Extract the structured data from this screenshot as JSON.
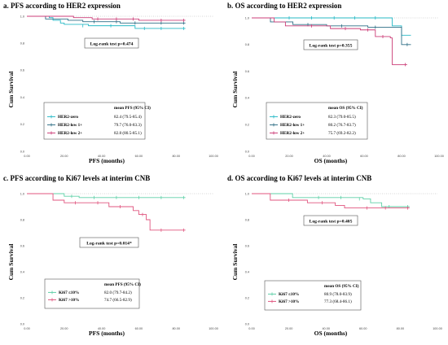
{
  "colors": {
    "HER2-zero": "#27b9c6",
    "HER2-low 1+": "#2f6f86",
    "HER2-low 2+": "#cc3e78",
    "Ki67 ≤10%": "#5fd0a7",
    "Ki67 >10%": "#e0567f"
  },
  "chart_data": [
    {
      "type": "line",
      "title": "a. PFS according to HER2 expression",
      "xlabel": "PFS (months)",
      "ylabel": "Cum Survival",
      "xlim": [
        0,
        100
      ],
      "ylim": [
        0,
        1
      ],
      "xticks": [
        "0.00",
        "20.00",
        "40.00",
        "60.00",
        "80.00",
        "100.00"
      ],
      "yticks": [
        "0.0",
        "0.2",
        "0.4",
        "0.6",
        "0.8",
        "1.0"
      ],
      "annotation": "Log-rank test p=0.474",
      "legend_header": "mean PFS (95% CI)",
      "series": [
        {
          "name": "HER2-zero",
          "ci": "82.4 (79.5-85.4)",
          "steps": [
            [
              0,
              1
            ],
            [
              12,
              0.99
            ],
            [
              14,
              0.97
            ],
            [
              18,
              0.95
            ],
            [
              20,
              0.94
            ],
            [
              33,
              0.93
            ],
            [
              58,
              0.91
            ],
            [
              85,
              0.91
            ]
          ],
          "censors": [
            [
              30,
              0.93
            ],
            [
              45,
              0.93
            ],
            [
              63,
              0.91
            ],
            [
              72,
              0.91
            ],
            [
              84,
              0.91
            ]
          ]
        },
        {
          "name": "HER2-low 1+",
          "ci": "79.7 (76.0-83.3)",
          "steps": [
            [
              0,
              1
            ],
            [
              10,
              0.98
            ],
            [
              22,
              0.97
            ],
            [
              30,
              0.96
            ],
            [
              50,
              0.95
            ],
            [
              85,
              0.95
            ]
          ],
          "censors": [
            [
              36,
              0.96
            ],
            [
              48,
              0.96
            ],
            [
              58,
              0.95
            ],
            [
              72,
              0.95
            ],
            [
              84,
              0.95
            ]
          ]
        },
        {
          "name": "HER2-low 2+",
          "ci": "82.8 (80.5-85.1)",
          "steps": [
            [
              0,
              1
            ],
            [
              25,
              0.99
            ],
            [
              35,
              0.98
            ],
            [
              60,
              0.97
            ],
            [
              85,
              0.97
            ]
          ],
          "censors": [
            [
              38,
              0.98
            ],
            [
              48,
              0.98
            ],
            [
              57,
              0.98
            ],
            [
              72,
              0.97
            ],
            [
              84,
              0.97
            ]
          ]
        }
      ]
    },
    {
      "type": "line",
      "title": "b. OS according to HER2 expression",
      "xlabel": "OS (months)",
      "ylabel": "Cum Survival",
      "xlim": [
        0,
        100
      ],
      "ylim": [
        0,
        1
      ],
      "xticks": [
        "0.00",
        "20.00",
        "40.00",
        "60.00",
        "80.00",
        "100.00"
      ],
      "yticks": [
        "0.0",
        "0.2",
        "0.4",
        "0.6",
        "0.8",
        "1.0"
      ],
      "annotation": "Log-rank test p=0.355",
      "legend_header": "mean OS (95% CI)",
      "series": [
        {
          "name": "HER2-zero",
          "ci": "82.3 (79.0-85.5)",
          "steps": [
            [
              0,
              1
            ],
            [
              68,
              1
            ],
            [
              75,
              0.94
            ],
            [
              80,
              0.87
            ],
            [
              85,
              0.87
            ]
          ],
          "censors": [
            [
              20,
              1
            ],
            [
              32,
              1
            ],
            [
              44,
              1
            ],
            [
              55,
              1
            ],
            [
              66,
              1
            ],
            [
              80,
              0.87
            ]
          ]
        },
        {
          "name": "HER2-low 1+",
          "ci": "80.2 (76.7-83.7)",
          "steps": [
            [
              0,
              1
            ],
            [
              10,
              0.97
            ],
            [
              22,
              0.95
            ],
            [
              40,
              0.94
            ],
            [
              62,
              0.93
            ],
            [
              80,
              0.8
            ],
            [
              85,
              0.8
            ]
          ],
          "censors": [
            [
              30,
              0.95
            ],
            [
              48,
              0.94
            ],
            [
              66,
              0.93
            ],
            [
              83,
              0.8
            ]
          ]
        },
        {
          "name": "HER2-low 2+",
          "ci": "75.7 (69.2-82.2)",
          "steps": [
            [
              0,
              1
            ],
            [
              12,
              0.97
            ],
            [
              18,
              0.94
            ],
            [
              42,
              0.92
            ],
            [
              58,
              0.91
            ],
            [
              66,
              0.86
            ],
            [
              74,
              0.85
            ],
            [
              75,
              0.65
            ],
            [
              83,
              0.65
            ]
          ],
          "censors": [
            [
              32,
              0.94
            ],
            [
              50,
              0.92
            ],
            [
              62,
              0.91
            ],
            [
              70,
              0.86
            ],
            [
              82,
              0.65
            ]
          ]
        }
      ]
    },
    {
      "type": "line",
      "title": "c. PFS according to Ki67 levels at interim CNB",
      "xlabel": "PFS (months)",
      "ylabel": "Cum Survival",
      "xlim": [
        0,
        100
      ],
      "ylim": [
        0,
        1
      ],
      "xticks": [
        "0.00",
        "20.00",
        "40.00",
        "60.00",
        "80.00",
        "100.00"
      ],
      "yticks": [
        "0.0",
        "0.2",
        "0.4",
        "0.6",
        "0.8",
        "1.0"
      ],
      "annotation": "Log-rank test p=0.014*",
      "legend_header": "mean PFS (95% CI)",
      "series": [
        {
          "name": "Ki67 ≤10%",
          "ci": "82.0 (79.7-84.2)",
          "steps": [
            [
              0,
              1
            ],
            [
              18,
              1
            ],
            [
              20,
              0.98
            ],
            [
              28,
              0.97
            ],
            [
              85,
              0.97
            ]
          ],
          "censors": [
            [
              24,
              0.98
            ],
            [
              36,
              0.97
            ],
            [
              48,
              0.97
            ],
            [
              60,
              0.97
            ],
            [
              72,
              0.97
            ],
            [
              84,
              0.97
            ]
          ]
        },
        {
          "name": "Ki67 >10%",
          "ci": "74.7 (66.5-82.9)",
          "steps": [
            [
              0,
              1
            ],
            [
              14,
              0.95
            ],
            [
              20,
              0.93
            ],
            [
              44,
              0.9
            ],
            [
              57,
              0.87
            ],
            [
              60,
              0.84
            ],
            [
              64,
              0.8
            ],
            [
              66,
              0.72
            ],
            [
              85,
              0.72
            ]
          ],
          "censors": [
            [
              26,
              0.93
            ],
            [
              38,
              0.93
            ],
            [
              50,
              0.9
            ],
            [
              62,
              0.84
            ],
            [
              72,
              0.72
            ],
            [
              84,
              0.72
            ]
          ]
        }
      ]
    },
    {
      "type": "line",
      "title": "d. OS according to Ki67 levels at interim CNB",
      "xlabel": "OS (months)",
      "ylabel": "Cum Survival",
      "xlim": [
        0,
        100
      ],
      "ylim": [
        0,
        1
      ],
      "xticks": [
        "0.00",
        "20.00",
        "40.00",
        "60.00",
        "80.00",
        "100.00"
      ],
      "yticks": [
        "0.0",
        "0.2",
        "0.4",
        "0.6",
        "0.8",
        "1.0"
      ],
      "annotation": "Log-rank test p=0.405",
      "legend_header": "mean OS (95% CI)",
      "series": [
        {
          "name": "Ki67 ≤10%",
          "ci": "80.9 (78.0-83.9)",
          "steps": [
            [
              0,
              1
            ],
            [
              20,
              1
            ],
            [
              22,
              0.97
            ],
            [
              60,
              0.96
            ],
            [
              64,
              0.93
            ],
            [
              70,
              0.9
            ],
            [
              85,
              0.9
            ]
          ],
          "censors": [
            [
              36,
              0.97
            ],
            [
              48,
              0.97
            ],
            [
              58,
              0.96
            ],
            [
              74,
              0.9
            ],
            [
              84,
              0.9
            ]
          ]
        },
        {
          "name": "Ki67 >10%",
          "ci": "77.3 (68.4-86.1)",
          "steps": [
            [
              0,
              1
            ],
            [
              10,
              0.95
            ],
            [
              30,
              0.93
            ],
            [
              45,
              0.91
            ],
            [
              50,
              0.89
            ],
            [
              85,
              0.89
            ]
          ],
          "censors": [
            [
              20,
              0.95
            ],
            [
              38,
              0.93
            ],
            [
              62,
              0.89
            ],
            [
              72,
              0.89
            ],
            [
              84,
              0.89
            ]
          ]
        }
      ]
    }
  ]
}
